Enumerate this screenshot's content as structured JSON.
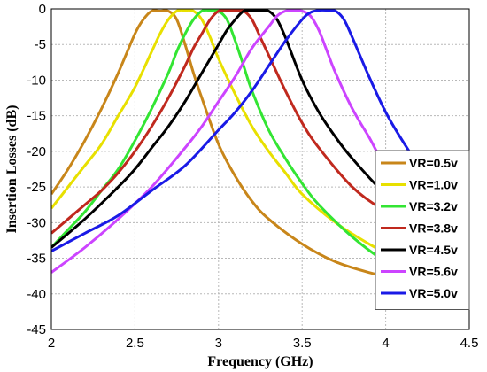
{
  "chart_data": {
    "type": "line",
    "xlabel": "Frequency (GHz)",
    "ylabel": "Insertion Losses (dB)",
    "xlim": [
      2,
      4.5
    ],
    "ylim": [
      -45,
      0
    ],
    "xticks": [
      "2",
      "2.5",
      "3",
      "3.5",
      "4",
      "4.5"
    ],
    "yticks": [
      "0",
      "-5",
      "-10",
      "-15",
      "-20",
      "-25",
      "-30",
      "-35",
      "-40",
      "-45"
    ],
    "grid": true,
    "legend_position": "bottom-right",
    "series": [
      {
        "name": "VR=0.5v",
        "color": "#C8861A",
        "x": [
          2.0,
          2.1,
          2.2,
          2.3,
          2.4,
          2.5,
          2.55,
          2.6,
          2.65,
          2.7,
          2.75,
          2.8,
          2.85,
          2.9,
          3.0,
          3.1,
          3.2,
          3.3,
          3.5,
          3.7,
          3.9,
          4.1
        ],
        "y": [
          -26,
          -22.5,
          -18.5,
          -14,
          -9,
          -3.5,
          -1.5,
          -0.3,
          -0.3,
          -0.3,
          -1.5,
          -5,
          -9,
          -12.5,
          -19,
          -23.5,
          -27,
          -29.5,
          -33,
          -35.5,
          -37,
          -38
        ]
      },
      {
        "name": "VR=1.0v",
        "color": "#E8E000",
        "x": [
          2.0,
          2.1,
          2.2,
          2.3,
          2.4,
          2.5,
          2.6,
          2.65,
          2.7,
          2.75,
          2.8,
          2.85,
          2.9,
          2.95,
          3.0,
          3.1,
          3.2,
          3.3,
          3.4,
          3.5,
          3.7,
          3.9,
          4.1
        ],
        "y": [
          -28,
          -25,
          -22,
          -19,
          -15,
          -11,
          -6,
          -3.5,
          -1.5,
          -0.3,
          -0.2,
          -0.3,
          -1.5,
          -4,
          -7,
          -12,
          -16.5,
          -20,
          -23,
          -26,
          -30,
          -33,
          -35.5
        ]
      },
      {
        "name": "VR=3.2v",
        "color": "#33E533",
        "x": [
          2.0,
          2.1,
          2.2,
          2.3,
          2.4,
          2.5,
          2.6,
          2.7,
          2.75,
          2.8,
          2.85,
          2.9,
          2.95,
          3.0,
          3.05,
          3.1,
          3.15,
          3.2,
          3.3,
          3.4,
          3.5,
          3.6,
          3.8,
          4.0,
          4.2
        ],
        "y": [
          -33.5,
          -31,
          -28.5,
          -25.5,
          -22.5,
          -18.5,
          -14,
          -9,
          -6,
          -3.5,
          -1.5,
          -0.3,
          -0.2,
          -0.3,
          -1.5,
          -4.5,
          -8,
          -11.5,
          -17,
          -21,
          -24.5,
          -27.5,
          -32,
          -35.5,
          -38
        ]
      },
      {
        "name": "VR=3.8v",
        "color": "#C0291E",
        "x": [
          2.0,
          2.1,
          2.2,
          2.3,
          2.4,
          2.5,
          2.6,
          2.7,
          2.8,
          2.85,
          2.9,
          2.95,
          3.0,
          3.05,
          3.1,
          3.15,
          3.2,
          3.25,
          3.3,
          3.4,
          3.5,
          3.6,
          3.8,
          4.0,
          4.2
        ],
        "y": [
          -31.5,
          -29.5,
          -27.5,
          -25.5,
          -23,
          -20,
          -16.5,
          -12.5,
          -8,
          -5.5,
          -3.5,
          -1.5,
          -0.3,
          -0.2,
          -0.2,
          -0.3,
          -1.5,
          -4,
          -6.5,
          -11.5,
          -16,
          -19.5,
          -25,
          -28.5,
          -31.5
        ]
      },
      {
        "name": "VR=4.5v",
        "color": "#000000",
        "x": [
          2.0,
          2.2,
          2.4,
          2.5,
          2.6,
          2.7,
          2.8,
          2.9,
          3.0,
          3.05,
          3.1,
          3.15,
          3.2,
          3.25,
          3.3,
          3.35,
          3.4,
          3.5,
          3.6,
          3.7,
          3.8,
          4.0,
          4.2
        ],
        "y": [
          -33.5,
          -29.5,
          -25,
          -22.5,
          -19.5,
          -16.5,
          -13,
          -9,
          -5,
          -3,
          -1.5,
          -0.3,
          -0.2,
          -0.2,
          -0.3,
          -1.5,
          -4,
          -10,
          -14.5,
          -18,
          -21,
          -26,
          -29
        ]
      },
      {
        "name": "VR=5.6v",
        "color": "#CC44FF",
        "x": [
          2.0,
          2.2,
          2.4,
          2.6,
          2.8,
          2.9,
          3.0,
          3.1,
          3.2,
          3.3,
          3.35,
          3.4,
          3.45,
          3.5,
          3.55,
          3.6,
          3.65,
          3.7,
          3.8,
          3.9,
          4.0,
          4.2
        ],
        "y": [
          -37,
          -33.5,
          -29.5,
          -25,
          -19.5,
          -16.5,
          -13,
          -9.5,
          -5.5,
          -2.5,
          -1,
          -0.3,
          -0.2,
          -0.3,
          -1,
          -3,
          -6,
          -9,
          -14,
          -18,
          -22,
          -27
        ]
      },
      {
        "name": "VR=5.0v",
        "color": "#1A1AE6",
        "x": [
          2.0,
          2.2,
          2.4,
          2.6,
          2.8,
          3.0,
          3.1,
          3.2,
          3.3,
          3.4,
          3.5,
          3.55,
          3.6,
          3.65,
          3.7,
          3.75,
          3.8,
          3.9,
          4.0,
          4.1,
          4.2,
          4.3
        ],
        "y": [
          -34,
          -31.5,
          -29,
          -25.5,
          -22,
          -17,
          -14.5,
          -11.5,
          -8,
          -4.5,
          -1.5,
          -0.5,
          -0.2,
          -0.2,
          -0.3,
          -1.5,
          -4,
          -9.5,
          -14.5,
          -18.5,
          -22,
          -24.5
        ]
      }
    ]
  }
}
